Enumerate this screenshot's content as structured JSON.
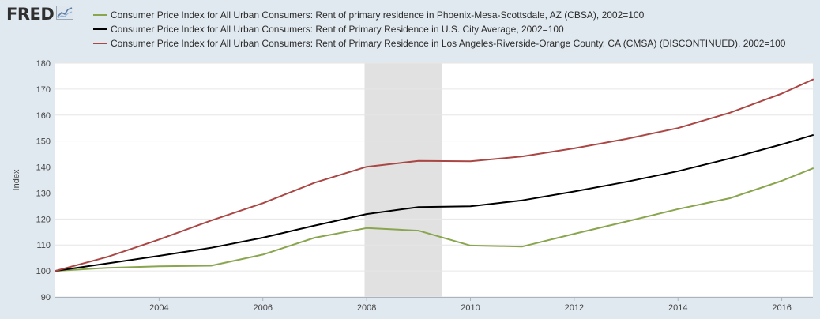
{
  "logo": {
    "text": "FRED",
    "icon": "line-chart-icon"
  },
  "chart_data": {
    "type": "line",
    "ylabel": "Index",
    "ylim": [
      90,
      180
    ],
    "yticks": [
      90,
      100,
      110,
      120,
      130,
      140,
      150,
      160,
      170,
      180
    ],
    "xlim": [
      2002.0,
      2016.6
    ],
    "xticks": [
      2004,
      2006,
      2008,
      2010,
      2012,
      2014,
      2016
    ],
    "grid": true,
    "legend_position": "top",
    "recession_shading": {
      "start": 2007.96,
      "end": 2009.45,
      "color": "#e1e1e1"
    },
    "series": [
      {
        "name": "Consumer Price Index for All Urban Consumers: Rent of primary residence in Phoenix-Mesa-Scottsdale, AZ (CBSA), 2002=100",
        "color": "#89a54e",
        "x": [
          2002,
          2003,
          2004,
          2005,
          2006,
          2007,
          2008,
          2009,
          2010,
          2011,
          2012,
          2013,
          2014,
          2015,
          2016,
          2016.6
        ],
        "values": [
          100.0,
          101.2,
          101.8,
          102.0,
          106.3,
          112.8,
          116.5,
          115.5,
          109.8,
          109.4,
          114.3,
          119.0,
          123.8,
          128.0,
          134.7,
          139.5
        ]
      },
      {
        "name": "Consumer Price Index for All Urban Consumers: Rent of Primary Residence in U.S. City Average, 2002=100",
        "color": "#000000",
        "x": [
          2002,
          2003,
          2004,
          2005,
          2006,
          2007,
          2008,
          2009,
          2010,
          2011,
          2012,
          2013,
          2014,
          2015,
          2016,
          2016.6
        ],
        "values": [
          100.0,
          102.9,
          105.8,
          108.9,
          112.8,
          117.5,
          121.9,
          124.6,
          124.9,
          127.2,
          130.6,
          134.3,
          138.4,
          143.3,
          148.7,
          152.3
        ]
      },
      {
        "name": "Consumer Price Index for All Urban Consumers: Rent of Primary Residence in Los Angeles-Riverside-Orange County, CA (CMSA) (DISCONTINUED), 2002=100",
        "color": "#aa4643",
        "x": [
          2002,
          2003,
          2004,
          2005,
          2006,
          2007,
          2008,
          2009,
          2010,
          2011,
          2012,
          2013,
          2014,
          2015,
          2016,
          2016.6
        ],
        "values": [
          100.0,
          105.4,
          112.1,
          119.4,
          126.1,
          134.0,
          140.1,
          142.4,
          142.2,
          144.1,
          147.2,
          150.8,
          155.0,
          160.9,
          168.3,
          173.7
        ]
      }
    ]
  }
}
